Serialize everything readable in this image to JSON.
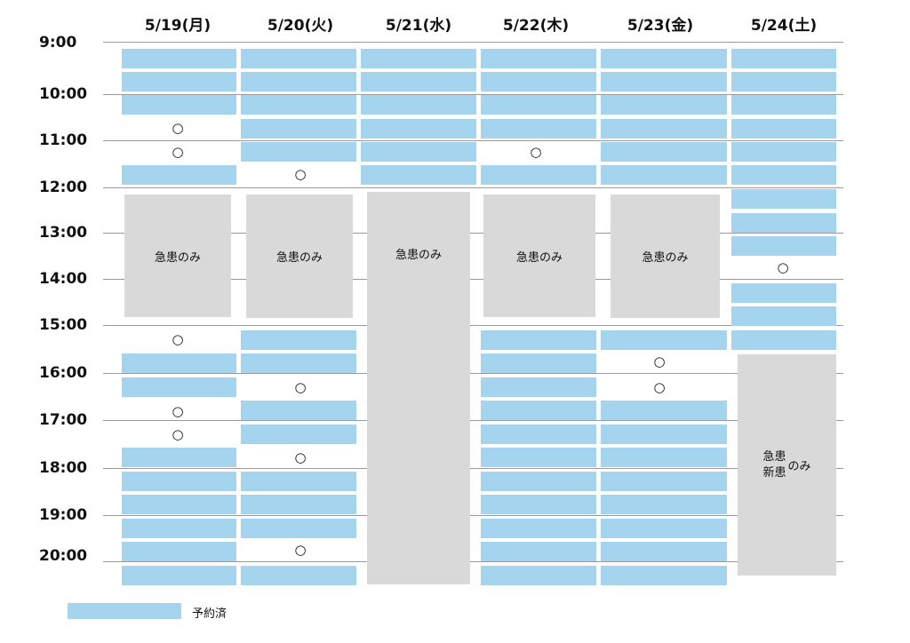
{
  "days": [
    "5/19(月)",
    "5/20(火)",
    "5/21(水)",
    "5/22(木)",
    "5/23(金)",
    "5/24(土)"
  ],
  "times": [
    "9:00",
    "10:00",
    "11:00",
    "12:00",
    "13:00",
    "14:00",
    "15:00",
    "16:00",
    "17:00",
    "18:00",
    "19:00",
    "20:00"
  ],
  "available_mark": "○",
  "blocks": {
    "emergency_only": "急患のみ",
    "sat_line1": "急患",
    "sat_line2": "新患",
    "sat_suffix": "のみ"
  },
  "legend": {
    "booked_label": "予約済",
    "booked_color": "#a5d4ef"
  }
}
